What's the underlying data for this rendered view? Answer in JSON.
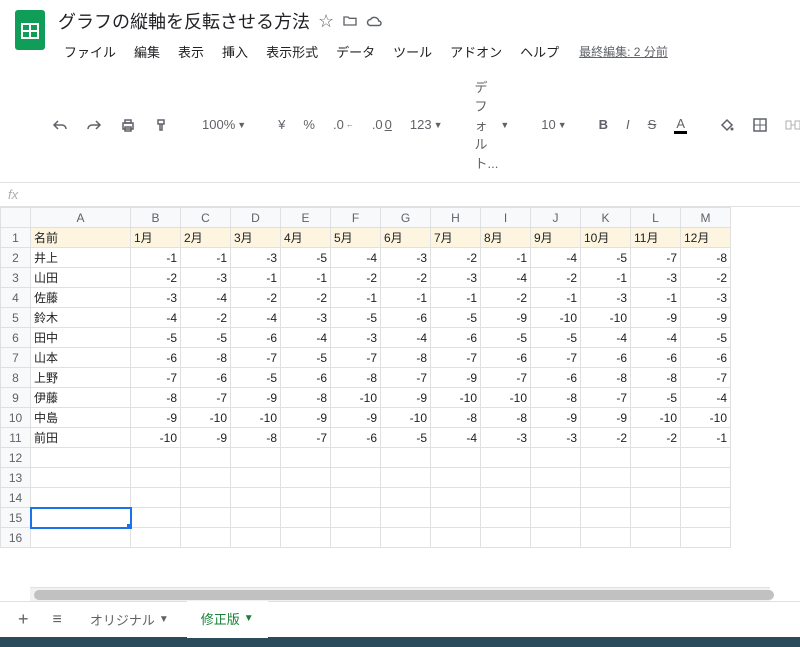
{
  "doc": {
    "title": "グラフの縦軸を反転させる方法"
  },
  "menus": {
    "file": "ファイル",
    "edit": "編集",
    "view": "表示",
    "insert": "挿入",
    "format": "表示形式",
    "data": "データ",
    "tools": "ツール",
    "addons": "アドオン",
    "help": "ヘルプ",
    "lastEdit": "最終編集: 2 分前"
  },
  "toolbar": {
    "zoom": "100%",
    "currency": "¥",
    "percent": "%",
    "dec0": ".0",
    "dec00": ".00",
    "numfmt": "123",
    "font": "デフォルト...",
    "fontsize": "10",
    "bold": "B",
    "italic": "I",
    "strike": "S",
    "underlineA": "A"
  },
  "fx": {
    "label": "fx"
  },
  "columns": [
    "A",
    "B",
    "C",
    "D",
    "E",
    "F",
    "G",
    "H",
    "I",
    "J",
    "K",
    "L",
    "M"
  ],
  "headerRow": [
    "名前",
    "1月",
    "2月",
    "3月",
    "4月",
    "5月",
    "6月",
    "7月",
    "8月",
    "9月",
    "10月",
    "11月",
    "12月"
  ],
  "rows": [
    {
      "n": "井上",
      "v": [
        -1,
        -1,
        -3,
        -5,
        -4,
        -3,
        -2,
        -1,
        -4,
        -5,
        -7,
        -8
      ]
    },
    {
      "n": "山田",
      "v": [
        -2,
        -3,
        -1,
        -1,
        -2,
        -2,
        -3,
        -4,
        -2,
        -1,
        -3,
        -2
      ]
    },
    {
      "n": "佐藤",
      "v": [
        -3,
        -4,
        -2,
        -2,
        -1,
        -1,
        -1,
        -2,
        -1,
        -3,
        -1,
        -3
      ]
    },
    {
      "n": "鈴木",
      "v": [
        -4,
        -2,
        -4,
        -3,
        -5,
        -6,
        -5,
        -9,
        -10,
        -10,
        -9,
        -9
      ]
    },
    {
      "n": "田中",
      "v": [
        -5,
        -5,
        -6,
        -4,
        -3,
        -4,
        -6,
        -5,
        -5,
        -4,
        -4,
        -5
      ]
    },
    {
      "n": "山本",
      "v": [
        -6,
        -8,
        -7,
        -5,
        -7,
        -8,
        -7,
        -6,
        -7,
        -6,
        -6,
        -6
      ]
    },
    {
      "n": "上野",
      "v": [
        -7,
        -6,
        -5,
        -6,
        -8,
        -7,
        -9,
        -7,
        -6,
        -8,
        -8,
        -7
      ]
    },
    {
      "n": "伊藤",
      "v": [
        -8,
        -7,
        -9,
        -8,
        -10,
        -9,
        -10,
        -10,
        -8,
        -7,
        -5,
        -4
      ]
    },
    {
      "n": "中島",
      "v": [
        -9,
        -10,
        -10,
        -9,
        -9,
        -10,
        -8,
        -8,
        -9,
        -9,
        -10,
        -10
      ]
    },
    {
      "n": "前田",
      "v": [
        -10,
        -9,
        -8,
        -7,
        -6,
        -5,
        -4,
        -3,
        -3,
        -2,
        -2,
        -1
      ]
    }
  ],
  "emptyRows": [
    12,
    13,
    14,
    15,
    16
  ],
  "activeCell": {
    "row": 15,
    "col": 0
  },
  "sheetTabs": {
    "add": "+",
    "all": "≡",
    "tab1": "オリジナル",
    "tab2": "修正版"
  },
  "colors": {
    "headerFill": "#fdf5e0",
    "gridBorder": "#000000",
    "accent": "#1a73e8",
    "tabActive": "#188038"
  }
}
